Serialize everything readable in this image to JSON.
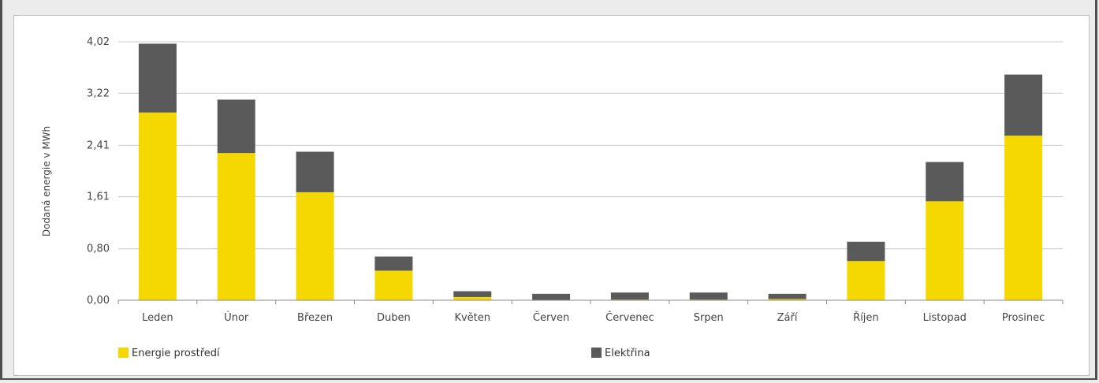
{
  "chart_data": {
    "type": "bar",
    "stacked": true,
    "title": "",
    "xlabel": "",
    "ylabel": "Dodaná energie v MWh",
    "ylim": [
      0,
      4.02
    ],
    "yticks": [
      "0,00",
      "0,80",
      "1,61",
      "2,41",
      "3,22",
      "4,02"
    ],
    "ytick_values": [
      0,
      0.8,
      1.61,
      2.41,
      3.22,
      4.02
    ],
    "grid": true,
    "legend_position": "bottom",
    "categories": [
      "Leden",
      "Únor",
      "Březen",
      "Duben",
      "Květen",
      "Červen",
      "Červenec",
      "Srpen",
      "Září",
      "Říjen",
      "Listopad",
      "Prosinec"
    ],
    "series": [
      {
        "name": "Energie prostředí",
        "color": "#f5d800",
        "values": [
          2.92,
          2.29,
          1.68,
          0.46,
          0.05,
          0.0,
          0.01,
          0.01,
          0.02,
          0.61,
          1.54,
          2.56
        ]
      },
      {
        "name": "Elektřina",
        "color": "#5a5a5a",
        "values": [
          1.07,
          0.83,
          0.63,
          0.22,
          0.09,
          0.1,
          0.11,
          0.11,
          0.08,
          0.3,
          0.61,
          0.95
        ]
      }
    ]
  }
}
